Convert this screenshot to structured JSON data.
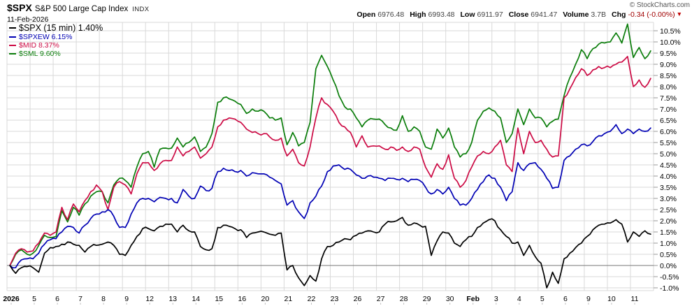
{
  "header": {
    "symbol": "$SPX",
    "name": "S&P 500 Large Cap Index",
    "exchange": "INDX",
    "date": "11-Feb-2026",
    "copyright": "© StockCharts.com",
    "quote": {
      "pairs": [
        {
          "label": "Open",
          "value": "6976.48"
        },
        {
          "label": "High",
          "value": "6993.48"
        },
        {
          "label": "Low",
          "value": "6911.97"
        },
        {
          "label": "Close",
          "value": "6941.47"
        },
        {
          "label": "Volume",
          "value": "3.7B"
        },
        {
          "label": "Chg",
          "value": "-0.34 (-0.00%)",
          "is_change": true
        }
      ],
      "down_triangle": "▼"
    }
  },
  "legend": [
    {
      "label": "$SPX (15 min) 1.40%",
      "color": "#000000",
      "large": true
    },
    {
      "label": "$SPXEW 6.15%",
      "color": "#0000b4",
      "large": false
    },
    {
      "label": "$MID 8.37%",
      "color": "#cc0a44",
      "large": false
    },
    {
      "label": "$SML 9.60%",
      "color": "#0a7d0a",
      "large": false
    }
  ],
  "chart_data": {
    "type": "line",
    "title": "$SPX vs $SPXEW vs $MID vs $SML percent change, 15 min bars, 2-Jan-2026 to 11-Feb-2026",
    "x_labels": [
      "2026",
      "5",
      "6",
      "7",
      "8",
      "9",
      "12",
      "13",
      "14",
      "15",
      "16",
      "20",
      "21",
      "22",
      "23",
      "26",
      "27",
      "28",
      "29",
      "30",
      "Feb",
      "3",
      "4",
      "5",
      "6",
      "9",
      "10",
      "11"
    ],
    "bold_x_labels": [
      "2026",
      "Feb"
    ],
    "points_per_day": 4,
    "ylim": [
      -1.125,
      10.875
    ],
    "ytick_labels": [
      "10.5%",
      "10.0%",
      "9.5%",
      "9.0%",
      "8.5%",
      "8.0%",
      "7.5%",
      "7.0%",
      "6.5%",
      "6.0%",
      "5.5%",
      "5.0%",
      "4.5%",
      "4.0%",
      "3.5%",
      "3.0%",
      "2.5%",
      "2.0%",
      "1.5%",
      "1.0%",
      "0.5%",
      "0.0%",
      "-0.5%",
      "-1.0%"
    ],
    "grid_color": "#d9d9d9",
    "zero_line_color": "#777777",
    "tick_color": "#999999",
    "series": [
      {
        "name": "$SPX",
        "final": "1.40%",
        "color": "#000000",
        "values": [
          0.0,
          -0.35,
          -0.1,
          -0.05,
          -0.1,
          -0.3,
          0.55,
          0.8,
          0.85,
          0.95,
          1.05,
          0.95,
          0.9,
          0.6,
          0.85,
          0.9,
          0.95,
          1.05,
          0.9,
          0.5,
          0.45,
          0.9,
          1.3,
          1.65,
          1.65,
          1.55,
          1.75,
          1.85,
          1.85,
          1.5,
          1.8,
          1.55,
          1.5,
          0.85,
          0.7,
          0.75,
          1.7,
          1.8,
          1.75,
          1.65,
          1.6,
          1.25,
          1.45,
          1.5,
          1.5,
          1.4,
          1.35,
          1.45,
          -0.2,
          0.0,
          -0.55,
          -0.9,
          -0.45,
          -0.7,
          0.3,
          0.85,
          0.9,
          1.05,
          1.2,
          1.15,
          1.35,
          1.45,
          1.55,
          1.5,
          1.5,
          1.85,
          1.95,
          2.0,
          2.15,
          1.8,
          1.9,
          1.8,
          1.75,
          0.45,
          1.1,
          1.5,
          1.45,
          1.0,
          0.85,
          1.15,
          1.3,
          1.7,
          1.9,
          2.05,
          2.0,
          1.6,
          1.3,
          1.0,
          1.05,
          0.45,
          0.9,
          0.4,
          0.1,
          -1.0,
          -0.3,
          -0.8,
          0.3,
          0.55,
          0.8,
          1.0,
          1.3,
          1.6,
          1.8,
          1.85,
          1.9,
          2.05,
          1.85,
          1.05,
          1.5,
          1.3,
          1.55,
          1.4
        ]
      },
      {
        "name": "$SPXEW",
        "final": "6.15%",
        "color": "#0000b4",
        "values": [
          0.0,
          -0.1,
          0.25,
          0.3,
          0.3,
          0.55,
          0.95,
          1.15,
          1.2,
          1.5,
          1.75,
          1.7,
          1.45,
          1.8,
          2.1,
          2.3,
          2.4,
          2.5,
          2.2,
          1.7,
          1.7,
          2.3,
          2.8,
          3.0,
          3.0,
          2.85,
          3.05,
          3.0,
          3.0,
          2.8,
          3.4,
          3.1,
          3.0,
          3.55,
          3.35,
          3.45,
          4.2,
          4.35,
          4.25,
          4.2,
          4.25,
          4.0,
          4.15,
          4.1,
          4.1,
          3.95,
          3.8,
          3.65,
          2.7,
          2.9,
          2.4,
          2.1,
          2.8,
          3.1,
          3.55,
          4.2,
          4.45,
          4.5,
          4.3,
          4.3,
          4.05,
          3.9,
          4.0,
          3.95,
          3.9,
          3.8,
          3.9,
          3.85,
          3.9,
          3.75,
          3.85,
          3.8,
          3.5,
          3.2,
          3.4,
          3.2,
          3.5,
          3.0,
          2.7,
          2.7,
          3.0,
          3.4,
          3.75,
          4.05,
          3.9,
          3.5,
          2.9,
          3.3,
          4.6,
          4.25,
          4.55,
          4.6,
          4.3,
          3.9,
          3.45,
          3.5,
          4.7,
          4.9,
          5.2,
          5.4,
          5.35,
          5.55,
          5.8,
          5.9,
          6.0,
          6.3,
          5.9,
          6.1,
          5.9,
          6.1,
          6.0,
          6.15
        ]
      },
      {
        "name": "$MID",
        "final": "8.37%",
        "color": "#cc0a44",
        "values": [
          0.0,
          0.55,
          0.75,
          0.6,
          0.65,
          1.0,
          1.45,
          1.35,
          1.5,
          2.6,
          2.05,
          2.75,
          2.4,
          2.9,
          3.3,
          3.6,
          3.3,
          2.5,
          3.5,
          3.75,
          3.6,
          3.2,
          4.1,
          4.6,
          4.6,
          4.25,
          4.55,
          4.7,
          4.7,
          5.3,
          4.9,
          5.1,
          5.3,
          4.8,
          5.0,
          5.3,
          6.2,
          6.5,
          6.6,
          6.55,
          6.4,
          6.1,
          5.95,
          5.9,
          5.9,
          5.75,
          5.6,
          5.7,
          4.9,
          5.2,
          4.6,
          4.45,
          5.3,
          6.6,
          7.5,
          7.2,
          6.9,
          6.4,
          6.2,
          5.95,
          5.3,
          5.8,
          5.3,
          5.35,
          5.35,
          5.2,
          5.3,
          5.15,
          5.3,
          5.1,
          5.3,
          5.2,
          4.4,
          3.95,
          4.55,
          4.3,
          4.95,
          3.9,
          3.5,
          3.8,
          4.4,
          4.9,
          5.1,
          5.0,
          5.3,
          5.6,
          4.5,
          4.2,
          6.15,
          5.0,
          6.0,
          5.5,
          5.6,
          5.2,
          4.85,
          4.9,
          7.5,
          7.9,
          8.4,
          8.8,
          8.5,
          8.75,
          8.9,
          8.85,
          8.85,
          9.0,
          9.1,
          9.35,
          8.0,
          8.3,
          7.97,
          8.37
        ]
      },
      {
        "name": "$SML",
        "final": "9.60%",
        "color": "#0a7d0a",
        "values": [
          0.0,
          0.5,
          0.7,
          0.5,
          0.55,
          0.9,
          1.35,
          1.25,
          1.3,
          2.45,
          1.95,
          2.6,
          2.25,
          2.75,
          3.1,
          3.3,
          3.3,
          2.8,
          3.6,
          3.9,
          3.8,
          3.5,
          4.4,
          5.0,
          5.1,
          4.4,
          5.2,
          5.25,
          5.25,
          5.7,
          5.3,
          5.5,
          5.75,
          5.1,
          5.3,
          5.9,
          7.3,
          7.5,
          7.45,
          7.35,
          7.2,
          6.8,
          7.0,
          6.9,
          6.9,
          6.6,
          6.5,
          6.6,
          5.4,
          5.95,
          5.35,
          5.5,
          6.4,
          8.8,
          9.4,
          8.9,
          8.3,
          7.6,
          7.1,
          7.0,
          6.6,
          6.2,
          6.5,
          6.55,
          6.55,
          6.3,
          6.15,
          6.05,
          6.7,
          6.0,
          6.2,
          6.0,
          5.3,
          5.2,
          6.1,
          5.7,
          6.15,
          5.3,
          4.85,
          5.0,
          5.5,
          6.5,
          6.9,
          7.05,
          6.9,
          6.6,
          5.5,
          5.9,
          7.0,
          6.3,
          7.0,
          6.6,
          6.6,
          6.2,
          6.45,
          6.55,
          7.6,
          8.4,
          9.0,
          9.65,
          9.25,
          9.7,
          9.9,
          9.95,
          10.0,
          10.4,
          9.95,
          10.8,
          9.3,
          9.75,
          9.25,
          9.6
        ]
      }
    ]
  }
}
